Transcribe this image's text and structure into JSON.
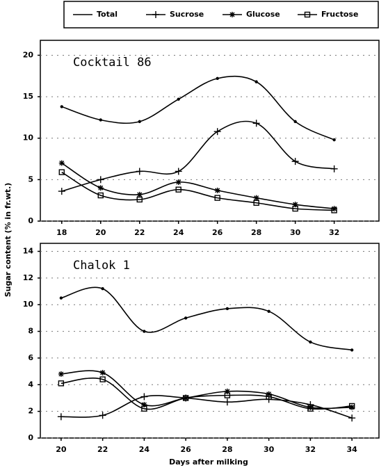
{
  "ylabel": "Sugar content (% in fr.wt.)",
  "xlabel": "Days after milking",
  "chart_data": [
    {
      "type": "line",
      "title": "Cocktail 86",
      "grid": true,
      "legend": "top",
      "x": [
        18,
        20,
        22,
        24,
        26,
        28,
        30,
        32
      ],
      "xlim": [
        16.9,
        34.3
      ],
      "xticks": [
        18,
        20,
        22,
        24,
        26,
        28,
        30,
        32
      ],
      "ylim": [
        0,
        21.8
      ],
      "yticks": [
        0,
        5,
        10,
        15,
        20
      ],
      "series": [
        {
          "name": "Total",
          "color": "#000000",
          "marker": "dot",
          "values": [
            13.8,
            12.2,
            12,
            14.7,
            17.2,
            16.8,
            12,
            9.8
          ]
        },
        {
          "name": "Sucrose",
          "color": "#000000",
          "marker": "plus",
          "values": [
            3.6,
            5,
            6,
            6,
            10.8,
            11.8,
            7.2,
            6.3
          ]
        },
        {
          "name": "Glucose",
          "color": "#000000",
          "marker": "star",
          "values": [
            7,
            4,
            3.2,
            4.7,
            3.7,
            2.8,
            2,
            1.5
          ]
        },
        {
          "name": "Fructose",
          "color": "#000000",
          "marker": "square",
          "values": [
            5.9,
            3.1,
            2.6,
            3.8,
            2.8,
            2.2,
            1.5,
            1.3
          ]
        }
      ]
    },
    {
      "type": "line",
      "title": "Chalok 1",
      "grid": true,
      "x": [
        20,
        22,
        24,
        26,
        28,
        30,
        32,
        34
      ],
      "xlim": [
        19,
        35.3
      ],
      "xticks": [
        20,
        22,
        24,
        26,
        28,
        30,
        32,
        34
      ],
      "ylim": [
        0,
        14.6
      ],
      "yticks": [
        0,
        2,
        4,
        6,
        8,
        10,
        12,
        14
      ],
      "series": [
        {
          "name": "Total",
          "color": "#000000",
          "marker": "dot",
          "values": [
            10.5,
            11.2,
            8,
            9,
            9.7,
            9.5,
            7.2,
            6.6
          ]
        },
        {
          "name": "Sucrose",
          "color": "#000000",
          "marker": "plus",
          "values": [
            1.6,
            1.7,
            3.1,
            3,
            2.7,
            2.9,
            2.5,
            1.5
          ]
        },
        {
          "name": "Glucose",
          "color": "#000000",
          "marker": "star",
          "values": [
            4.8,
            4.9,
            2.5,
            3,
            3.5,
            3.3,
            2.3,
            2.3
          ]
        },
        {
          "name": "Fructose",
          "color": "#000000",
          "marker": "square",
          "values": [
            4.1,
            4.4,
            2.2,
            3,
            3.2,
            3.1,
            2.2,
            2.4
          ]
        }
      ]
    }
  ]
}
